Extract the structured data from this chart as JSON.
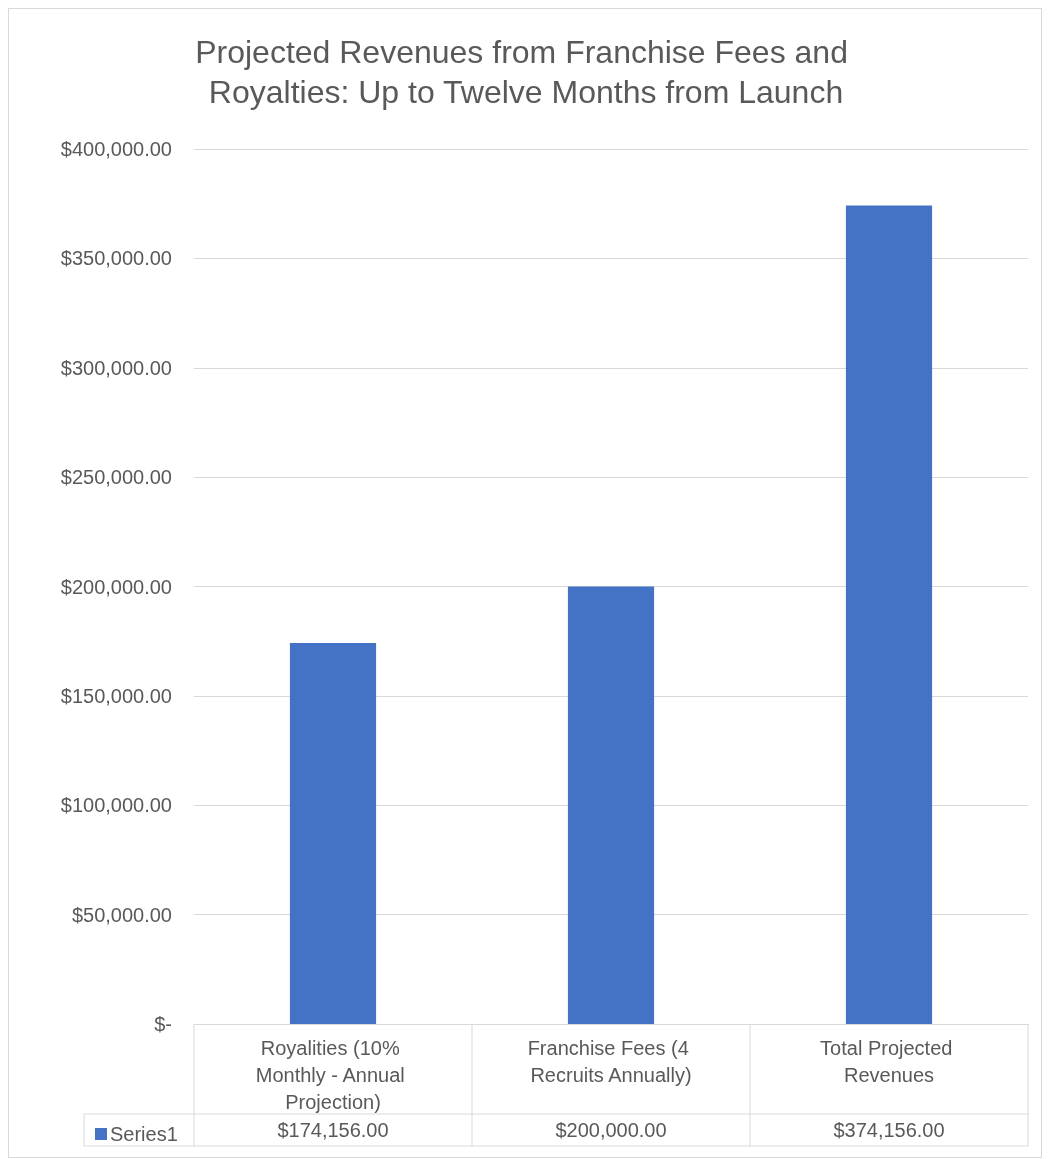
{
  "chart_data": {
    "type": "bar",
    "title": "Projected Revenues from Franchise Fees and Royalties: Up to Twelve Months from Launch",
    "categories": [
      "Royalities (10% Monthly - Annual Projection)",
      "Franchise Fees (4 Recruits Annually)",
      "Total Projected Revenues"
    ],
    "series": [
      {
        "name": "Series1",
        "color": "#4472c4",
        "values": [
          174156,
          200000,
          374156
        ],
        "value_labels": [
          "$174,156.00",
          "$200,000.00",
          "$374,156.00"
        ]
      }
    ],
    "ylim": [
      0,
      400000
    ],
    "yticks": [
      {
        "value": 0,
        "label": "$-"
      },
      {
        "value": 50000,
        "label": "$50,000.00"
      },
      {
        "value": 100000,
        "label": "$100,000.00"
      },
      {
        "value": 150000,
        "label": "$150,000.00"
      },
      {
        "value": 200000,
        "label": "$200,000.00"
      },
      {
        "value": 250000,
        "label": "$250,000.00"
      },
      {
        "value": 300000,
        "label": "$300,000.00"
      },
      {
        "value": 350000,
        "label": "$350,000.00"
      },
      {
        "value": 400000,
        "label": "$400,000.00"
      }
    ],
    "grid": "y",
    "legend": "bottom"
  }
}
